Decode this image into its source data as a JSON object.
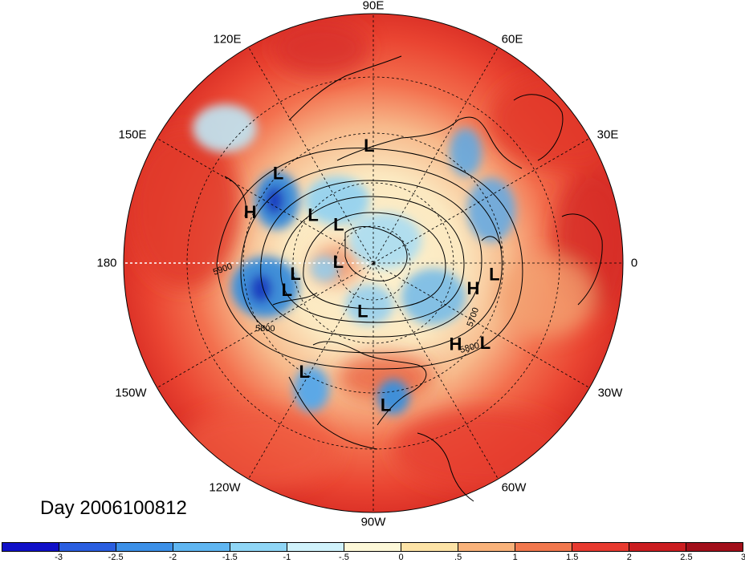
{
  "map": {
    "projection": "north-polar-stereographic",
    "day_label": "Day 2006100812",
    "lon_labels": [
      "90E",
      "60E",
      "30E",
      "0",
      "30W",
      "60W",
      "90W",
      "120W",
      "150W",
      "180",
      "150E",
      "120E"
    ],
    "lat_circles_deg": [
      30,
      45,
      60,
      75
    ],
    "centers": [
      {
        "type": "L",
        "lat": 40,
        "lon": 92
      },
      {
        "type": "L",
        "lat": 35,
        "lon": 137
      },
      {
        "type": "L",
        "lat": 56,
        "lon": 142
      },
      {
        "type": "L",
        "lat": 67,
        "lon": 133
      },
      {
        "type": "L",
        "lat": 55,
        "lon": 189
      },
      {
        "type": "L",
        "lat": 50,
        "lon": 198
      },
      {
        "type": "L",
        "lat": 74,
        "lon": 180
      },
      {
        "type": "L",
        "lat": 67,
        "lon": 258
      },
      {
        "type": "L",
        "lat": 35,
        "lon": 238
      },
      {
        "type": "L",
        "lat": 30,
        "lon": 275
      },
      {
        "type": "L",
        "lat": 32,
        "lon": 324
      },
      {
        "type": "L",
        "lat": 38,
        "lon": 354
      },
      {
        "type": "H",
        "lat": 34,
        "lon": 158
      },
      {
        "type": "H",
        "lat": 40,
        "lon": 315
      },
      {
        "type": "H",
        "lat": 45,
        "lon": 345
      }
    ],
    "contour_labels": [
      "5900",
      "5800",
      "5700",
      "5800"
    ],
    "colors": {
      "ocean_warm": "#f2553a",
      "land_warm": "#e83628",
      "neutral": "#fef9e2",
      "cool": "#a3ddf2",
      "cold": "#3f8fd8",
      "very_cold": "#1a3fc0"
    }
  },
  "colorbar": {
    "colors": [
      "#1010c8",
      "#2a5ee0",
      "#3c90e8",
      "#5fb6f2",
      "#8fd6f6",
      "#d0f2fb",
      "#fdf8d8",
      "#fde3a6",
      "#f9b27a",
      "#f2784e",
      "#e83a30",
      "#cb1d20",
      "#a20f1a"
    ],
    "ticks": [
      "-3",
      "-2.5",
      "-2",
      "-1.5",
      "-1",
      "-.5",
      "0",
      ".5",
      "1",
      "1.5",
      "2",
      "2.5",
      "3"
    ]
  }
}
